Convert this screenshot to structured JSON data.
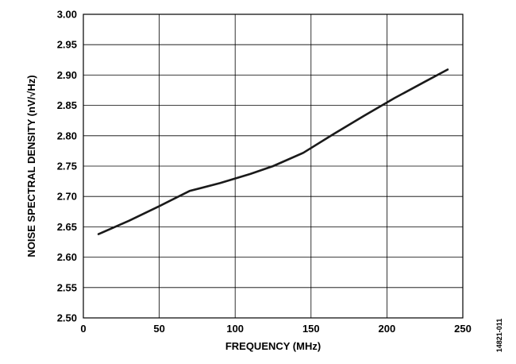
{
  "chart_data": {
    "type": "line",
    "xlabel": "FREQUENCY (MHz)",
    "ylabel": "NOISE SPECTRAL DENSITY (nV/√Hz)",
    "xlim": [
      0,
      250
    ],
    "ylim": [
      2.5,
      3.0
    ],
    "x_ticks": [
      0,
      50,
      100,
      150,
      200,
      250
    ],
    "y_ticks": [
      2.5,
      2.55,
      2.6,
      2.65,
      2.7,
      2.75,
      2.8,
      2.85,
      2.9,
      2.95,
      3.0
    ],
    "x_tick_labels": [
      "0",
      "50",
      "100",
      "150",
      "200",
      "250"
    ],
    "y_tick_labels": [
      "2.50",
      "2.55",
      "2.60",
      "2.65",
      "2.70",
      "2.75",
      "2.80",
      "2.85",
      "2.90",
      "2.95",
      "3.00"
    ],
    "grid": true,
    "series": [
      {
        "color": "#1a1a1a",
        "x": [
          10,
          30,
          50,
          70,
          90,
          110,
          125,
          145,
          165,
          185,
          205,
          225,
          240
        ],
        "y": [
          2.638,
          2.66,
          2.684,
          2.709,
          2.722,
          2.737,
          2.75,
          2.772,
          2.803,
          2.833,
          2.862,
          2.889,
          2.909
        ]
      }
    ]
  },
  "figure_id": "14821-011"
}
